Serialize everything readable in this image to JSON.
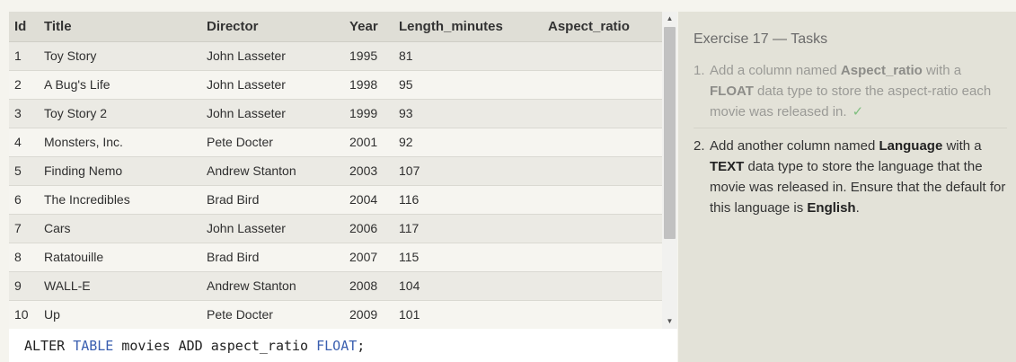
{
  "table": {
    "headers": [
      "Id",
      "Title",
      "Director",
      "Year",
      "Length_minutes",
      "Aspect_ratio"
    ],
    "rows": [
      [
        "1",
        "Toy Story",
        "John Lasseter",
        "1995",
        "81",
        ""
      ],
      [
        "2",
        "A Bug's Life",
        "John Lasseter",
        "1998",
        "95",
        ""
      ],
      [
        "3",
        "Toy Story 2",
        "John Lasseter",
        "1999",
        "93",
        ""
      ],
      [
        "4",
        "Monsters, Inc.",
        "Pete Docter",
        "2001",
        "92",
        ""
      ],
      [
        "5",
        "Finding Nemo",
        "Andrew Stanton",
        "2003",
        "107",
        ""
      ],
      [
        "6",
        "The Incredibles",
        "Brad Bird",
        "2004",
        "116",
        ""
      ],
      [
        "7",
        "Cars",
        "John Lasseter",
        "2006",
        "117",
        ""
      ],
      [
        "8",
        "Ratatouille",
        "Brad Bird",
        "2007",
        "115",
        ""
      ],
      [
        "9",
        "WALL-E",
        "Andrew Stanton",
        "2008",
        "104",
        ""
      ],
      [
        "10",
        "Up",
        "Pete Docter",
        "2009",
        "101",
        ""
      ]
    ]
  },
  "scrollbar": {
    "up_arrow": "▲",
    "down_arrow": "▼"
  },
  "editor": {
    "tokens": [
      {
        "text": "ALTER ",
        "kind": "plain"
      },
      {
        "text": "TABLE",
        "kind": "kw"
      },
      {
        "text": " movies ADD aspect_ratio ",
        "kind": "plain"
      },
      {
        "text": "FLOAT",
        "kind": "kw"
      },
      {
        "text": ";",
        "kind": "plain"
      }
    ]
  },
  "tasks": {
    "title": "Exercise 17 — Tasks",
    "items": [
      {
        "number": "1.",
        "done": true,
        "check": "✓",
        "parts": [
          {
            "text": "Add a column named ",
            "bold": false
          },
          {
            "text": "Aspect_ratio",
            "bold": true
          },
          {
            "text": " with a ",
            "bold": false
          },
          {
            "text": "FLOAT",
            "bold": true
          },
          {
            "text": " data type to store the aspect-ratio each movie was released in.",
            "bold": false
          }
        ]
      },
      {
        "number": "2.",
        "done": false,
        "check": "",
        "parts": [
          {
            "text": "Add another column named ",
            "bold": false
          },
          {
            "text": "Language",
            "bold": true
          },
          {
            "text": " with a ",
            "bold": false
          },
          {
            "text": "TEXT",
            "bold": true
          },
          {
            "text": " data type to store the language that the movie was released in. Ensure that the default for this language is ",
            "bold": false
          },
          {
            "text": "English",
            "bold": true
          },
          {
            "text": ".",
            "bold": false
          }
        ]
      }
    ]
  }
}
